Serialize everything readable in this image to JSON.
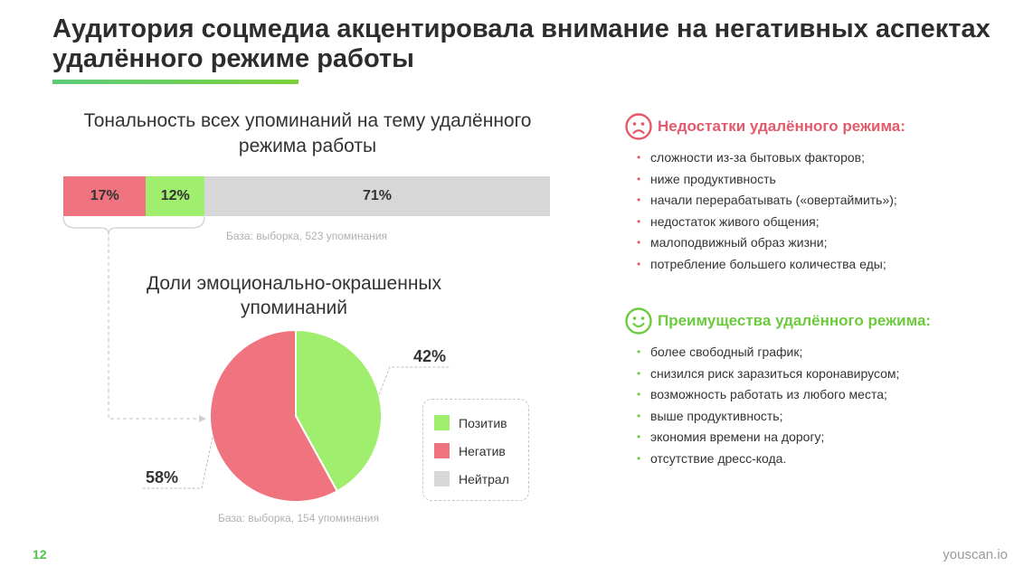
{
  "slide": {
    "title": "Аудитория соцмедиа акцентировала внимание на негативных аспектах удалённого режиме работы",
    "page_number": "12",
    "brand": "youscan.io"
  },
  "colors": {
    "negative": "#f07480",
    "positive": "#a0ee6e",
    "neutral": "#d7d7d7",
    "accent_red": "#e45a6a",
    "accent_green": "#6ccb3d"
  },
  "chart_data": [
    {
      "type": "bar",
      "orientation": "horizontal-stacked-100",
      "title": "Тональность всех упоминаний на тему удалённого режима работы",
      "categories": [
        "Негатив",
        "Позитив",
        "Нейтрал"
      ],
      "values": [
        17,
        12,
        71
      ],
      "value_labels": [
        "17%",
        "12%",
        "71%"
      ],
      "colors": [
        "#f07480",
        "#a0ee6e",
        "#d7d7d7"
      ],
      "note": "База: выборка, 523 упоминания"
    },
    {
      "type": "pie",
      "title": "Доли эмоционально-окрашенных упоминаний",
      "categories": [
        "Позитив",
        "Негатив"
      ],
      "values": [
        42,
        58
      ],
      "value_labels": [
        "42%",
        "58%"
      ],
      "colors": [
        "#a0ee6e",
        "#f07480"
      ],
      "legend": [
        "Позитив",
        "Негатив",
        "Нейтрал"
      ],
      "legend_colors": [
        "#a0ee6e",
        "#f07480",
        "#d7d7d7"
      ],
      "legend_position": "right",
      "note": "База: выборка, 154 упоминания"
    }
  ],
  "negatives": {
    "icon": "sad-face-icon",
    "title": "Недостатки удалённого режима:",
    "items": [
      "сложности из-за бытовых факторов;",
      "ниже продуктивность",
      "начали перерабатывать («овертаймить»);",
      "недостаток живого общения;",
      "малоподвижный образ жизни;",
      "потребление большего количества еды;"
    ]
  },
  "positives": {
    "icon": "smile-face-icon",
    "title": "Преимущества удалённого режима:",
    "items": [
      "более свободный график;",
      "снизился риск заразиться коронавирусом;",
      "возможность работать из любого места;",
      "выше продуктивность;",
      "экономия времени на дорогу;",
      "отсутствие дресс-кода."
    ]
  }
}
